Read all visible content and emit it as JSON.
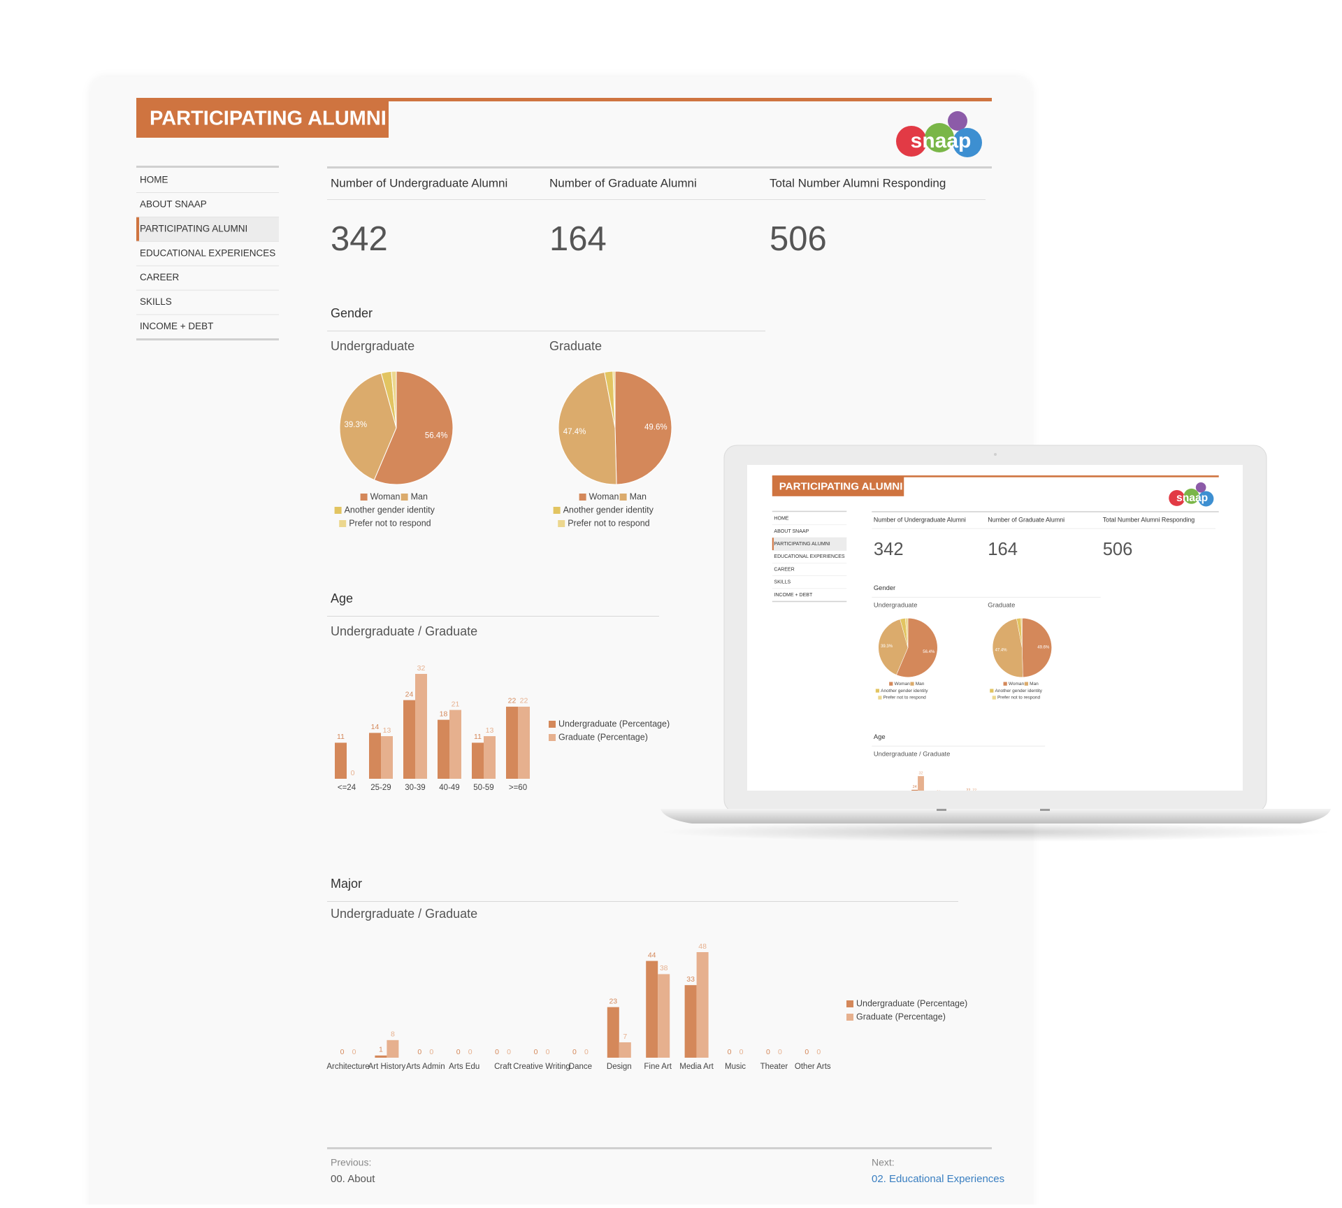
{
  "header": {
    "title": "PARTICIPATING ALUMNI",
    "logo": "snaap"
  },
  "nav": [
    "HOME",
    "ABOUT SNAAP",
    "PARTICIPATING ALUMNI",
    "EDUCATIONAL EXPERIENCES",
    "CAREER",
    "SKILLS",
    "INCOME + DEBT"
  ],
  "stats": [
    {
      "label": "Number of Undergraduate Alumni",
      "value": 342
    },
    {
      "label": "Number of Graduate Alumni",
      "value": 164
    },
    {
      "label": "Total Number Alumni Responding",
      "value": 506
    }
  ],
  "sections": [
    "Gender",
    "Age",
    "Major"
  ],
  "chart_data": [
    {
      "type": "pie",
      "title": "Undergraduate",
      "categories": [
        "Woman",
        "Man",
        "Another gender identity",
        "Prefer not to respond"
      ],
      "values": [
        56.4,
        39.3,
        2.9,
        1.4
      ],
      "value_labels": [
        "56.4%",
        "39.3%",
        null,
        null
      ],
      "colors": [
        "#d4885a",
        "#dbab6c",
        "#e2c461",
        "#ecd78e"
      ]
    },
    {
      "type": "pie",
      "title": "Graduate",
      "categories": [
        "Woman",
        "Man",
        "Another gender identity",
        "Prefer not to respond"
      ],
      "values": [
        49.6,
        47.4,
        2.4,
        0.6
      ],
      "value_labels": [
        "49.6%",
        "47.4%",
        null,
        null
      ],
      "colors": [
        "#d4885a",
        "#dbab6c",
        "#e2c461",
        "#ecd78e"
      ]
    },
    {
      "type": "bar",
      "title": "Undergraduate / Graduate",
      "categories": [
        "<=24",
        "25-29",
        "30-39",
        "40-49",
        "50-59",
        ">=60"
      ],
      "series": [
        {
          "name": "Undergraduate (Percentage)",
          "color": "#d4885a",
          "values": [
            11,
            14,
            24,
            18,
            11,
            22
          ]
        },
        {
          "name": "Graduate (Percentage)",
          "color": "#e6b08e",
          "values": [
            0,
            13,
            32,
            21,
            13,
            22
          ]
        }
      ]
    },
    {
      "type": "bar",
      "title": "Undergraduate / Graduate",
      "categories": [
        "Architecture",
        "Art History",
        "Arts Admin",
        "Arts Edu",
        "Craft",
        "Creative Writing",
        "Dance",
        "Design",
        "Fine Art",
        "Media Art",
        "Music",
        "Theater",
        "Other Arts"
      ],
      "series": [
        {
          "name": "Undergraduate (Percentage)",
          "color": "#d4885a",
          "values": [
            0,
            1,
            0,
            0,
            0,
            0,
            0,
            23,
            44,
            33,
            0,
            0,
            0
          ]
        },
        {
          "name": "Graduate (Percentage)",
          "color": "#e6b08e",
          "values": [
            0,
            8,
            0,
            0,
            0,
            0,
            0,
            7,
            38,
            48,
            0,
            0,
            0
          ]
        }
      ]
    }
  ],
  "footer": {
    "previous": {
      "label": "Previous:",
      "link": "00. About"
    },
    "next": {
      "label": "Next:",
      "link": "02. Educational Experiences"
    }
  }
}
